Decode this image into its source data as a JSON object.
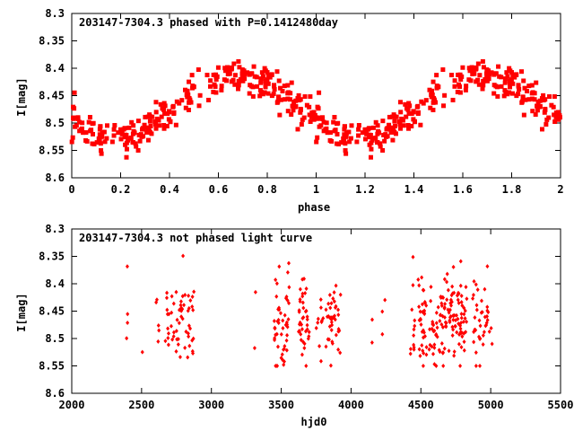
{
  "chart_data": [
    {
      "type": "scatter",
      "title": "203147-7304.3 phased with P=0.1412480day",
      "xlabel": "phase",
      "ylabel": "I[mag]",
      "xlim": [
        0,
        2
      ],
      "ylim": [
        8.3,
        8.6
      ],
      "y_inverted": true,
      "xticks": [
        "0",
        "0.2",
        "0.4",
        "0.6",
        "0.8",
        "1",
        "1.2",
        "1.4",
        "1.6",
        "1.8",
        "2"
      ],
      "xtick_values": [
        0,
        0.2,
        0.4,
        0.6,
        0.8,
        1,
        1.2,
        1.4,
        1.6,
        1.8,
        2
      ],
      "yticks": [
        "8.3",
        "8.35",
        "8.4",
        "8.45",
        "8.5",
        "8.55",
        "8.6"
      ],
      "ytick_values": [
        8.3,
        8.35,
        8.4,
        8.45,
        8.5,
        8.55,
        8.6
      ],
      "marker_color": "#ff0000",
      "marker": "filled-square",
      "model": {
        "description_values": {
          "mean": 8.47,
          "amplitude": 0.055,
          "phase_of_max_brightness": 0.68,
          "scatter": 0.025
        },
        "n_points": 300
      }
    },
    {
      "type": "scatter",
      "title": "203147-7304.3 not phased light curve",
      "xlabel": "hjd0",
      "ylabel": "I[mag]",
      "xlim": [
        2000,
        5500
      ],
      "ylim": [
        8.3,
        8.6
      ],
      "y_inverted": true,
      "xticks": [
        "2000",
        "2500",
        "3000",
        "3500",
        "4000",
        "4500",
        "5000",
        "5500"
      ],
      "xtick_values": [
        2000,
        2500,
        3000,
        3500,
        4000,
        4500,
        5000,
        5500
      ],
      "yticks": [
        "8.3",
        "8.35",
        "8.4",
        "8.45",
        "8.5",
        "8.55",
        "8.6"
      ],
      "ytick_values": [
        8.3,
        8.35,
        8.4,
        8.45,
        8.5,
        8.55,
        8.6
      ],
      "marker_color": "#ff0000",
      "marker": "filled-diamond",
      "seasons": [
        {
          "x": [
            2390,
            2400
          ],
          "n": 4
        },
        {
          "x": [
            2500,
            2510
          ],
          "n": 1
        },
        {
          "x": [
            2600,
            2630
          ],
          "n": 5
        },
        {
          "x": [
            2670,
            2880
          ],
          "n": 60
        },
        {
          "x": [
            3300,
            3320
          ],
          "n": 2
        },
        {
          "x": [
            3450,
            3560
          ],
          "n": 50
        },
        {
          "x": [
            3620,
            3700
          ],
          "n": 40
        },
        {
          "x": [
            3750,
            3800
          ],
          "n": 10
        },
        {
          "x": [
            3820,
            3930
          ],
          "n": 40
        },
        {
          "x": [
            4150,
            4160
          ],
          "n": 2
        },
        {
          "x": [
            4220,
            4250
          ],
          "n": 3
        },
        {
          "x": [
            4420,
            4460
          ],
          "n": 12
        },
        {
          "x": [
            4480,
            4830
          ],
          "n": 160
        },
        {
          "x": [
            4870,
            5010
          ],
          "n": 40
        }
      ]
    }
  ]
}
